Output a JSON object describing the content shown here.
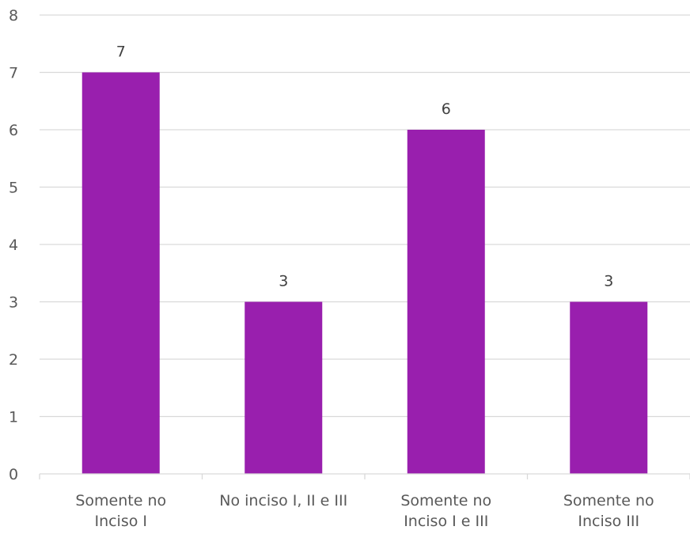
{
  "chart_data": {
    "type": "bar",
    "title": "",
    "xlabel": "",
    "ylabel": "",
    "categories": [
      [
        "Somente no",
        "Inciso I"
      ],
      [
        "No inciso I, II e III"
      ],
      [
        "Somente no",
        "Inciso I e III"
      ],
      [
        "Somente no",
        "Inciso III"
      ]
    ],
    "values": [
      7,
      3,
      6,
      3
    ],
    "ylim": [
      0,
      8
    ],
    "yticks": [
      0,
      1,
      2,
      3,
      4,
      5,
      6,
      7,
      8
    ],
    "grid": true,
    "legend": "none",
    "show_data_labels": true,
    "bar_color": "#991fae"
  }
}
